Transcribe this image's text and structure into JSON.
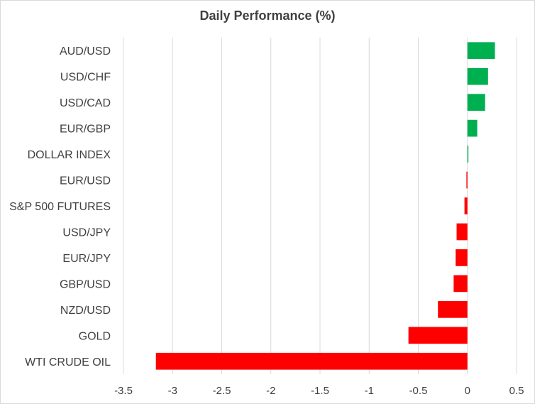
{
  "chart_data": {
    "type": "bar",
    "orientation": "horizontal",
    "title": "Daily Performance (%)",
    "xlabel": "",
    "ylabel": "",
    "categories": [
      "AUD/USD",
      "USD/CHF",
      "USD/CAD",
      "EUR/GBP",
      "DOLLAR INDEX",
      "EUR/USD",
      "S&P 500 FUTURES",
      "USD/JPY",
      "EUR/JPY",
      "GBP/USD",
      "NZD/USD",
      "GOLD",
      "WTI CRUDE OIL"
    ],
    "values": [
      0.28,
      0.21,
      0.18,
      0.1,
      0.01,
      -0.01,
      -0.03,
      -0.11,
      -0.12,
      -0.14,
      -0.3,
      -0.6,
      -3.17
    ],
    "xlim": [
      -3.5,
      0.5
    ],
    "xticks": [
      -3.5,
      -3,
      -2.5,
      -2,
      -1.5,
      -1,
      -0.5,
      0,
      0.5
    ],
    "tick_labels": [
      "-3.5",
      "-3",
      "-2.5",
      "-2",
      "-1.5",
      "-1",
      "-0.5",
      "0",
      "0.5"
    ],
    "grid": "vertical",
    "colors": {
      "positive": "#00b050",
      "negative": "#ff0000",
      "grid": "#d9d9d9",
      "text": "#404040"
    }
  }
}
